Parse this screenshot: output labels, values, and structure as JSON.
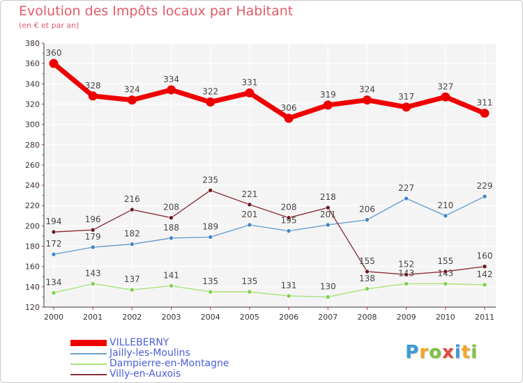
{
  "header": {
    "title": "Evolution des Impôts locaux par Habitant",
    "subtitle": "(en € et par an)"
  },
  "logo": {
    "text": "Proxiti",
    "letters": [
      {
        "ch": "P",
        "color": "#3a9bd6"
      },
      {
        "ch": "r",
        "color": "#f5a623"
      },
      {
        "ch": "o",
        "color": "#7dc242"
      },
      {
        "ch": "x",
        "color": "#e8443a"
      },
      {
        "ch": "i",
        "color": "#3a9bd6"
      },
      {
        "ch": "t",
        "color": "#f5a623"
      },
      {
        "ch": "i",
        "color": "#7dc242"
      }
    ]
  },
  "chart_data": {
    "type": "line",
    "title": "Evolution des Impôts locaux par Habitant",
    "subtitle": "(en € et par an)",
    "x": [
      "2000",
      "2001",
      "2002",
      "2003",
      "2004",
      "2005",
      "2006",
      "2007",
      "2008",
      "2009",
      "2010",
      "2011"
    ],
    "ylim": [
      120,
      380
    ],
    "yticks": [
      120,
      140,
      160,
      180,
      200,
      220,
      240,
      260,
      280,
      300,
      320,
      340,
      360,
      380
    ],
    "grid": true,
    "legend_position": "bottom-left",
    "series": [
      {
        "name": "VILLEBERNY",
        "color": "#ee0000",
        "emphasis": true,
        "values": [
          360,
          328,
          324,
          334,
          322,
          331,
          306,
          319,
          324,
          317,
          327,
          311
        ],
        "labels": [
          "360",
          "328",
          "324",
          "334",
          "322",
          "331",
          "306",
          "319",
          "324",
          "317",
          "327",
          "311"
        ]
      },
      {
        "name": "Jailly-les-Moulins",
        "color": "#6a9fd0",
        "marker": "#3e86c8",
        "values": [
          172,
          179,
          182,
          188,
          189,
          201,
          195,
          201,
          206,
          227,
          210,
          229
        ],
        "labels": [
          "172",
          "179",
          "182",
          "188",
          "189",
          "201",
          "195",
          "201",
          "206",
          "227",
          "210",
          "229"
        ]
      },
      {
        "name": "Dampierre-en-Montagne",
        "color": "#a8e27a",
        "marker": "#7dd24a",
        "values": [
          134,
          143,
          137,
          141,
          135,
          135,
          131,
          130,
          138,
          143,
          143,
          142
        ],
        "labels": [
          "134",
          "143",
          "137",
          "141",
          "135",
          "135",
          "131",
          "130",
          "138",
          "143",
          "143",
          "142"
        ]
      },
      {
        "name": "Villy-en-Auxois",
        "color": "#8a3038",
        "marker": "#6a1a22",
        "values": [
          194,
          196,
          216,
          208,
          235,
          221,
          208,
          218,
          155,
          152,
          155,
          160
        ],
        "labels": [
          "194",
          "196",
          "216",
          "208",
          "235",
          "221",
          "208",
          "218",
          "155",
          "152",
          "155",
          "160"
        ]
      }
    ]
  }
}
